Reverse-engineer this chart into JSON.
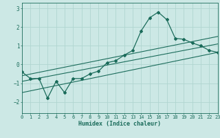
{
  "main_line_x": [
    0,
    1,
    2,
    3,
    4,
    5,
    6,
    7,
    8,
    9,
    10,
    11,
    12,
    13,
    14,
    15,
    16,
    17,
    18,
    19,
    20,
    21,
    22,
    23
  ],
  "main_line_y": [
    -0.4,
    -0.75,
    -0.75,
    -1.8,
    -0.9,
    -1.5,
    -0.75,
    -0.75,
    -0.5,
    -0.35,
    0.1,
    0.2,
    0.5,
    0.75,
    1.8,
    2.5,
    2.8,
    2.4,
    1.4,
    1.35,
    1.15,
    1.0,
    0.75,
    0.65
  ],
  "trend_line1_x": [
    0,
    23
  ],
  "trend_line1_y": [
    -0.6,
    1.5
  ],
  "trend_line2_x": [
    0,
    23
  ],
  "trend_line2_y": [
    -0.9,
    1.1
  ],
  "trend_line3_x": [
    0,
    23
  ],
  "trend_line3_y": [
    -1.5,
    0.65
  ],
  "xlim": [
    0,
    23
  ],
  "ylim": [
    -2.6,
    3.3
  ],
  "yticks": [
    -2,
    -1,
    0,
    1,
    2,
    3
  ],
  "xticks": [
    0,
    1,
    2,
    3,
    4,
    5,
    6,
    7,
    8,
    9,
    10,
    11,
    12,
    13,
    14,
    15,
    16,
    17,
    18,
    19,
    20,
    21,
    22,
    23
  ],
  "xlabel": "Humidex (Indice chaleur)",
  "bg_color": "#cce8e5",
  "line_color": "#1a6b5a",
  "grid_color": "#b0d5d0",
  "font_color": "#1a6b5a"
}
